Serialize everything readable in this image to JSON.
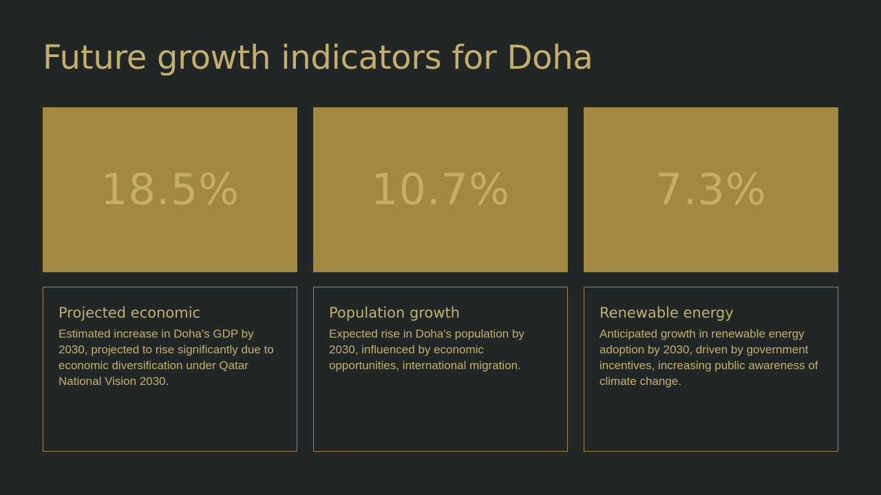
{
  "slide": {
    "title": "Future growth indicators for Doha"
  },
  "indicators": [
    {
      "value": "18.5%",
      "heading": "Projected economic",
      "description": "Estimated increase in Doha's GDP by 2030, projected to rise significantly due to economic diversification under Qatar National Vision 2030."
    },
    {
      "value": "10.7%",
      "heading": "Population growth",
      "description": "Expected rise in Doha's population by 2030, influenced by economic opportunities, international migration."
    },
    {
      "value": "7.3%",
      "heading": "Renewable energy",
      "description": "Anticipated growth in renewable energy adoption by 2030, driven by government incentives, increasing public awareness of climate change."
    }
  ],
  "colors": {
    "background": "#212727",
    "accent": "#A2893F",
    "text": "#C6AF6A"
  }
}
